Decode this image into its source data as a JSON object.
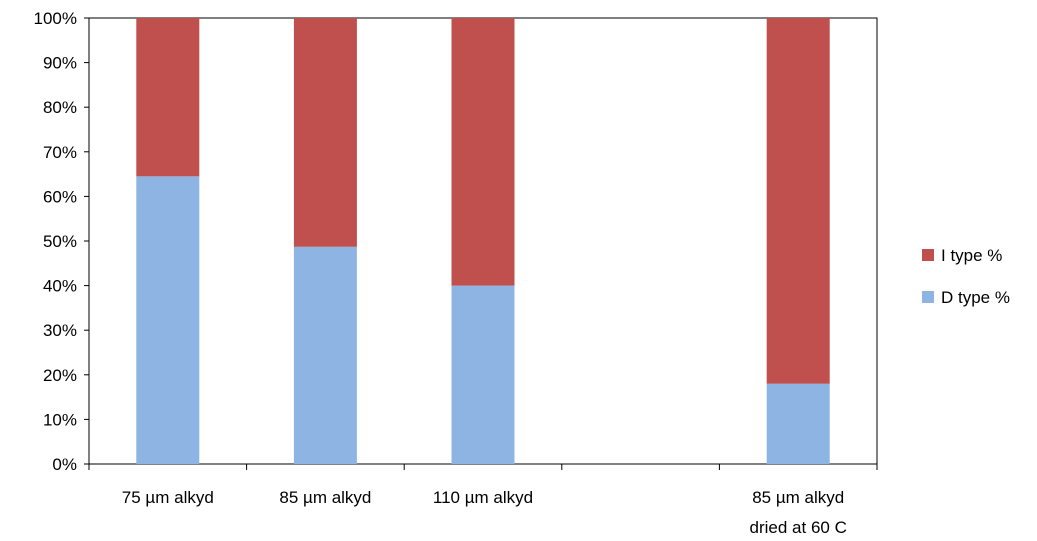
{
  "chart_data": {
    "type": "bar",
    "stacked": true,
    "percent_stacked": true,
    "categories": [
      "75 µm alkyd",
      "85 µm alkyd",
      "110 µm alkyd",
      "",
      "85 µm alkyd\ndried at 60 C"
    ],
    "series": [
      {
        "name": "D type %",
        "color": "#8EB4E3",
        "values": [
          64.5,
          48.7,
          40.0,
          null,
          18.0
        ]
      },
      {
        "name": "I type %",
        "color": "#C0504D",
        "values": [
          35.5,
          51.3,
          60.0,
          null,
          82.0
        ]
      }
    ],
    "y_ticks": [
      "0%",
      "10%",
      "20%",
      "30%",
      "40%",
      "50%",
      "60%",
      "70%",
      "80%",
      "90%",
      "100%"
    ],
    "ylim": [
      0,
      100
    ],
    "legend": {
      "position": "right",
      "order": [
        "I type %",
        "D type %"
      ]
    },
    "grid": false,
    "title": "",
    "xlabel": "",
    "ylabel": ""
  }
}
